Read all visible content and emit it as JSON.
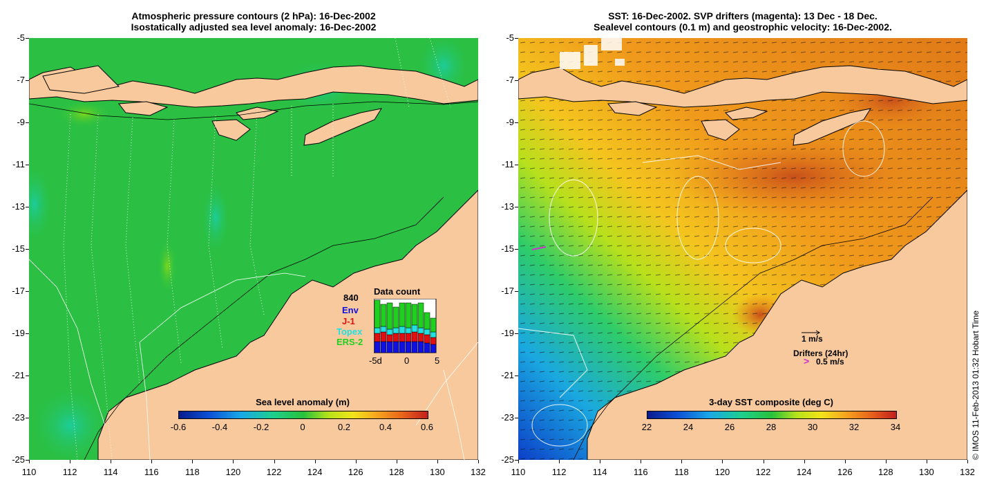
{
  "left_panel": {
    "title_line1": "Atmospheric pressure contours (2 hPa): 16-Dec-2002",
    "title_line2": "Isostatically adjusted sea level anomaly: 16-Dec-2002",
    "colorbar_title": "Sea level anomaly (m)",
    "colorbar_ticks": [
      "-0.6",
      "-0.4",
      "-0.2",
      "0",
      "0.2",
      "0.4",
      "0.6"
    ],
    "inset": {
      "title": "Data count",
      "count": "840",
      "legend": [
        {
          "label": "Env",
          "color": "#1010e0"
        },
        {
          "label": "J-1",
          "color": "#e01010"
        },
        {
          "label": "Topex",
          "color": "#20e0e0"
        },
        {
          "label": "ERS-2",
          "color": "#20d020"
        }
      ],
      "xticks": [
        "-5d",
        "0",
        "5"
      ]
    }
  },
  "right_panel": {
    "title_line1": "SST: 16-Dec-2002. SVP drifters (magenta): 13 Dec - 18 Dec.",
    "title_line2": "Sealevel contours (0.1 m) and geostrophic velocity: 16-Dec-2002.",
    "colorbar_title": "3-day SST composite (deg C)",
    "colorbar_ticks": [
      "22",
      "24",
      "26",
      "28",
      "30",
      "32",
      "34"
    ],
    "velocity_key": "1 m/s",
    "drifter_key_title": "Drifters (24hr)",
    "drifter_key_value": "0.5 m/s"
  },
  "axes": {
    "y_ticks": [
      "-5",
      "-7",
      "-9",
      "-11",
      "-13",
      "-15",
      "-17",
      "-19",
      "-21",
      "-23",
      "-25"
    ],
    "x_ticks": [
      "110",
      "112",
      "114",
      "116",
      "118",
      "120",
      "122",
      "124",
      "126",
      "128",
      "130",
      "132"
    ]
  },
  "copyright": "© IMOS 11-Feb-2013 01:32 Hobart Time",
  "colors": {
    "land": "#f7c99c",
    "sea_left": "#2bc043"
  }
}
